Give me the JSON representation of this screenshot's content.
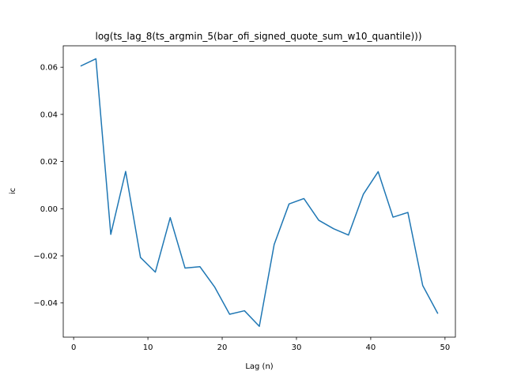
{
  "chart_data": {
    "type": "line",
    "title": "log(ts_lag_8(ts_argmin_5(bar_ofi_signed_quote_sum_w10_quantile)))",
    "xlabel": "Lag (n)",
    "ylabel": "ic",
    "xlim": [
      -1.4,
      51.4
    ],
    "ylim": [
      -0.0545,
      0.0691
    ],
    "xticks": [
      0,
      10,
      20,
      30,
      40,
      50
    ],
    "yticks": [
      -0.04,
      -0.02,
      0.0,
      0.02,
      0.04,
      0.06
    ],
    "ytick_labels": [
      "−0.04",
      "−0.02",
      "0.00",
      "0.02",
      "0.04",
      "0.06"
    ],
    "grid": false,
    "series": [
      {
        "color": "#1f77b4",
        "x": [
          1,
          3,
          5,
          7,
          9,
          11,
          13,
          15,
          17,
          19,
          21,
          23,
          25,
          27,
          29,
          31,
          33,
          35,
          37,
          39,
          41,
          43,
          45,
          47,
          49
        ],
        "y": [
          0.0606,
          0.0636,
          -0.0109,
          0.0158,
          -0.0207,
          -0.0269,
          -0.0038,
          -0.0252,
          -0.0246,
          -0.0333,
          -0.0448,
          -0.0433,
          -0.0499,
          -0.0152,
          0.002,
          0.0043,
          -0.0049,
          -0.0085,
          -0.0112,
          0.0061,
          0.0157,
          -0.0036,
          -0.0016,
          -0.0326,
          -0.0443
        ]
      }
    ]
  }
}
